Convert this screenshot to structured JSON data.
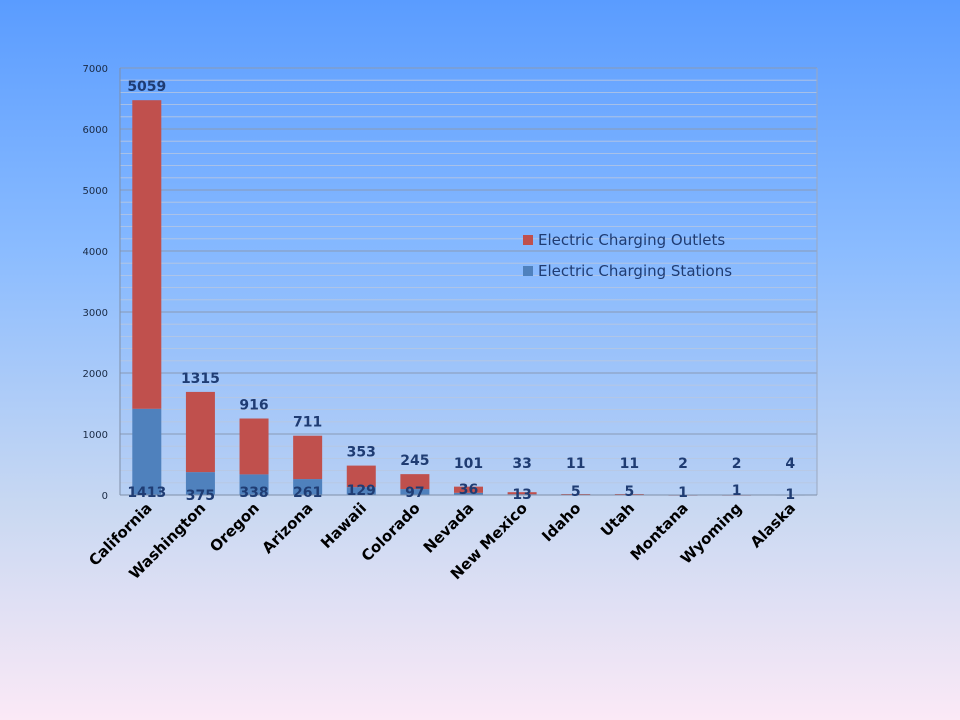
{
  "chart_data": {
    "type": "bar",
    "stacked": true,
    "categories": [
      "California",
      "Washington",
      "Oregon",
      "Arizona",
      "Hawaii",
      "Colorado",
      "Nevada",
      "New Mexico",
      "Idaho",
      "Utah",
      "Montana",
      "Wyoming",
      "Alaska"
    ],
    "series": [
      {
        "name": "Electric Charging Stations",
        "color": "#4f81bd",
        "values": [
          1413,
          375,
          338,
          261,
          129,
          97,
          36,
          13,
          5,
          5,
          1,
          1,
          1
        ]
      },
      {
        "name": "Electric Charging Outlets",
        "color": "#c0504d",
        "values": [
          5059,
          1315,
          916,
          711,
          353,
          245,
          101,
          33,
          11,
          11,
          2,
          2,
          4
        ]
      }
    ],
    "ylim": [
      0,
      7000
    ],
    "yticks": [
      0,
      1000,
      2000,
      3000,
      4000,
      5000,
      6000,
      7000
    ],
    "grid": true,
    "legend": "center-right",
    "title": "",
    "xlabel": "",
    "ylabel": ""
  }
}
